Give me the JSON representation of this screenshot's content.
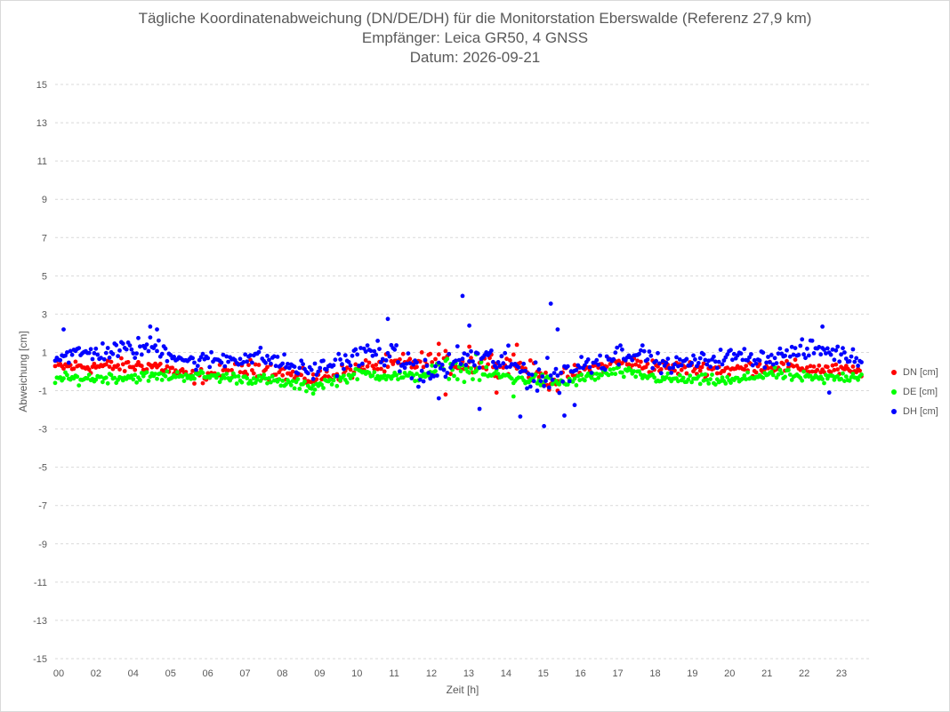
{
  "chart_data": {
    "type": "scatter",
    "title": "Tägliche Koordinatenabweichung (DN/DE/DH) für die Monitorstation Eberswalde (Referenz 27,9 km)",
    "subtitle": "Empfänger: Leica GR50, 4 GNSS",
    "date_line": "Datum: 2026-09-21",
    "xlabel": "Zeit [h]",
    "ylabel": "Abweichung [cm]",
    "xlim": [
      0,
      24
    ],
    "ylim": [
      -15,
      15
    ],
    "x_ticks": [
      "00",
      "02",
      "04",
      "05",
      "06",
      "07",
      "08",
      "09",
      "10",
      "11",
      "12",
      "13",
      "14",
      "15",
      "16",
      "17",
      "18",
      "19",
      "20",
      "21",
      "22",
      "23"
    ],
    "y_ticks": [
      "15",
      "13",
      "11",
      "9",
      "7",
      "5",
      "3",
      "1",
      "-1",
      "-3",
      "-5",
      "-7",
      "-9",
      "-11",
      "-13",
      "-15"
    ],
    "y_tick_values": [
      15,
      13,
      11,
      9,
      7,
      5,
      3,
      1,
      -1,
      -3,
      -5,
      -7,
      -9,
      -11,
      -13,
      -15
    ],
    "grid": "horizontal dashed",
    "legend_position": "right",
    "sample_interval_h": 0.05,
    "series": [
      {
        "name": "DN [cm]",
        "color": "#ff0000",
        "noise_band": [
          [
            0,
            0.25,
            0.4
          ],
          [
            3,
            0.3,
            0.4
          ],
          [
            4,
            -0.3,
            0.4
          ],
          [
            6,
            0.2,
            0.5
          ],
          [
            7.5,
            -0.4,
            0.4
          ],
          [
            9.5,
            0.3,
            0.5
          ],
          [
            11,
            0.5,
            0.6
          ],
          [
            12,
            0.4,
            0.6
          ],
          [
            13.5,
            0.5,
            0.6
          ],
          [
            14.5,
            -0.5,
            0.5
          ],
          [
            16.5,
            0.5,
            0.4
          ],
          [
            18,
            0.2,
            0.4
          ],
          [
            20,
            0.1,
            0.4
          ],
          [
            21,
            0.3,
            0.4
          ],
          [
            23.8,
            0.0,
            0.3
          ]
        ],
        "outliers": [
          [
            11.3,
            1.45
          ],
          [
            11.5,
            -1.2
          ],
          [
            12.2,
            1.3
          ],
          [
            13.0,
            -1.1
          ],
          [
            13.6,
            1.4
          ],
          [
            14.8,
            -1.0
          ]
        ]
      },
      {
        "name": "DE [cm]",
        "color": "#00ff00",
        "noise_band": [
          [
            0,
            -0.4,
            0.3
          ],
          [
            2,
            -0.3,
            0.3
          ],
          [
            4,
            -0.2,
            0.3
          ],
          [
            6,
            -0.4,
            0.3
          ],
          [
            7.5,
            -0.8,
            0.3
          ],
          [
            9,
            -0.1,
            0.3
          ],
          [
            10.5,
            -0.3,
            0.3
          ],
          [
            11.5,
            0.2,
            0.5
          ],
          [
            12.5,
            -0.1,
            0.5
          ],
          [
            14,
            -0.4,
            0.4
          ],
          [
            15,
            -0.6,
            0.3
          ],
          [
            16.5,
            0.0,
            0.3
          ],
          [
            18,
            -0.4,
            0.3
          ],
          [
            20,
            -0.5,
            0.3
          ],
          [
            21,
            -0.1,
            0.3
          ],
          [
            22.5,
            -0.4,
            0.3
          ],
          [
            23.8,
            -0.2,
            0.3
          ]
        ],
        "outliers": [
          [
            12.4,
            0.9
          ],
          [
            13.5,
            -1.3
          ],
          [
            7.6,
            -1.15
          ]
        ]
      },
      {
        "name": "DH [cm]",
        "color": "#0000ff",
        "noise_band": [
          [
            0,
            0.8,
            0.5
          ],
          [
            3,
            1.3,
            0.6
          ],
          [
            4,
            0.5,
            0.5
          ],
          [
            6,
            0.8,
            0.5
          ],
          [
            7.5,
            0.0,
            0.5
          ],
          [
            9.5,
            1.1,
            0.7
          ],
          [
            11,
            -0.2,
            0.8
          ],
          [
            12,
            0.7,
            0.8
          ],
          [
            13,
            0.6,
            0.8
          ],
          [
            14.5,
            -0.4,
            1.0
          ],
          [
            15.5,
            0.3,
            0.7
          ],
          [
            17,
            1.1,
            0.6
          ],
          [
            18,
            0.3,
            0.4
          ],
          [
            20,
            0.8,
            0.5
          ],
          [
            21,
            0.7,
            0.5
          ],
          [
            22.5,
            1.2,
            0.6
          ],
          [
            23.8,
            0.6,
            0.4
          ]
        ],
        "outliers": [
          [
            0.25,
            2.2
          ],
          [
            2.8,
            2.35
          ],
          [
            3.0,
            2.2
          ],
          [
            9.8,
            2.75
          ],
          [
            12.0,
            3.95
          ],
          [
            12.2,
            2.4
          ],
          [
            14.6,
            3.55
          ],
          [
            14.4,
            -2.85
          ],
          [
            13.7,
            -2.35
          ],
          [
            15.0,
            -2.3
          ],
          [
            15.3,
            -1.75
          ],
          [
            22.6,
            2.35
          ],
          [
            11.3,
            -1.4
          ],
          [
            12.5,
            -1.95
          ],
          [
            22.8,
            -1.1
          ],
          [
            14.8,
            2.2
          ]
        ]
      }
    ]
  }
}
